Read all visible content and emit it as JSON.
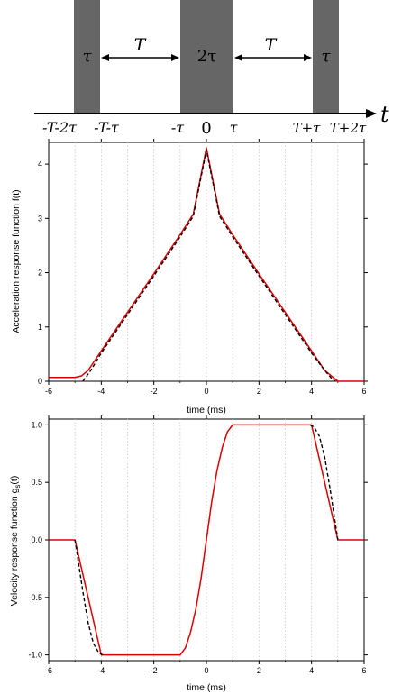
{
  "colors": {
    "pulse": "#666666",
    "model": "#dd0000",
    "approx": "#000000",
    "grid": "#c8c8c8"
  },
  "schematic": {
    "pulses": [
      {
        "start": "-T-2τ",
        "end": "-T-τ",
        "label": "τ"
      },
      {
        "start": "-τ",
        "end": "τ",
        "label": "2τ"
      },
      {
        "start": "T+τ",
        "end": "T+2τ",
        "label": "τ"
      }
    ],
    "gap_labels": [
      "T",
      "T"
    ],
    "axis_label": "t",
    "ticks": [
      "-T-2τ",
      "-T-τ",
      "-τ",
      "0",
      "τ",
      "T+τ",
      "T+2τ"
    ]
  },
  "chart_data": [
    {
      "type": "line",
      "xlabel": "time (ms)",
      "ylabel": "Acceleration response function f(t)",
      "xlim": [
        -6,
        6
      ],
      "ylim": [
        0,
        4.4
      ],
      "xticks": [
        "-6",
        "-4",
        "-2",
        "0",
        "2",
        "4",
        "6"
      ],
      "yticks": [
        "0",
        "1",
        "2",
        "3",
        "4"
      ],
      "grid": "vertical dotted",
      "series": [
        {
          "style": "solid red",
          "x": [
            -6,
            -5,
            -4.75,
            -4.5,
            -4.25,
            -4,
            -2,
            -1,
            -0.5,
            0,
            0.5,
            1,
            2,
            4,
            4.25,
            4.5,
            4.75,
            5,
            6
          ],
          "y": [
            0.07,
            0.07,
            0.1,
            0.2,
            0.38,
            0.56,
            1.98,
            2.7,
            3.08,
            4.3,
            3.08,
            2.7,
            1.98,
            0.56,
            0.38,
            0.2,
            0.1,
            0.0,
            0.0
          ]
        },
        {
          "style": "dashed black",
          "x": [
            -4.7,
            -4.4,
            -4,
            -2,
            -1,
            -0.5,
            0,
            0.5,
            1,
            2,
            4,
            4.5,
            4.75,
            4.9
          ],
          "y": [
            0.0,
            0.2,
            0.52,
            1.94,
            2.66,
            3.04,
            4.26,
            3.04,
            2.66,
            1.94,
            0.52,
            0.2,
            0.06,
            0.0
          ]
        }
      ]
    },
    {
      "type": "line",
      "xlabel": "time (ms)",
      "ylabel": "Velocity response function g",
      "ylabel_sub": "s",
      "ylabel_suffix": "(t)",
      "xlim": [
        -6,
        6
      ],
      "ylim": [
        -1.05,
        1.05
      ],
      "xticks": [
        "-6",
        "-4",
        "-2",
        "0",
        "2",
        "4",
        "6"
      ],
      "yticks": [
        "-1.0",
        "-0.5",
        "0.0",
        "0.5",
        "1.0"
      ],
      "grid": "vertical dotted",
      "series": [
        {
          "style": "solid red",
          "x": [
            -6,
            -5,
            -4.8,
            -4.6,
            -4.4,
            -4.2,
            -4,
            -2,
            -1,
            -0.8,
            -0.6,
            -0.4,
            -0.2,
            0,
            0.2,
            0.4,
            0.6,
            0.8,
            1,
            2,
            4,
            4.2,
            4.4,
            4.6,
            4.8,
            5,
            6
          ],
          "y": [
            0,
            0,
            -0.2,
            -0.4,
            -0.6,
            -0.8,
            -1.0,
            -1.0,
            -1.0,
            -0.94,
            -0.8,
            -0.6,
            -0.33,
            0.0,
            0.33,
            0.6,
            0.8,
            0.94,
            1.0,
            1.0,
            1.0,
            0.8,
            0.6,
            0.4,
            0.2,
            0,
            0
          ]
        },
        {
          "style": "dashed black",
          "x": [
            -5,
            -4.9,
            -4.7,
            -4.5,
            -4.3,
            -4.1,
            -3.95
          ],
          "y": [
            0,
            -0.15,
            -0.45,
            -0.72,
            -0.9,
            -0.98,
            -1.0
          ]
        },
        {
          "style": "dashed black",
          "x": [
            3.95,
            4.1,
            4.3,
            4.5,
            4.7,
            4.9,
            5.0
          ],
          "y": [
            1.0,
            0.98,
            0.9,
            0.72,
            0.45,
            0.15,
            0.0
          ]
        }
      ]
    }
  ]
}
